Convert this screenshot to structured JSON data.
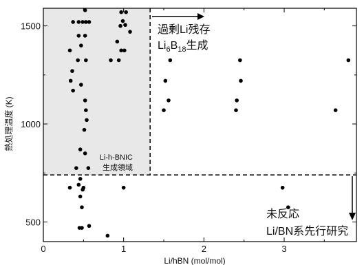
{
  "chart_data": {
    "type": "scatter",
    "xlabel": "Li/hBN (mol/mol)",
    "ylabel": "熱処理温度 (K)",
    "xlim": [
      0,
      3.9
    ],
    "ylim": [
      400,
      1590
    ],
    "x_ticks": [
      "0",
      "1",
      "2",
      "3"
    ],
    "x_tick_values": [
      0,
      1,
      2,
      3
    ],
    "y_ticks": [
      "500",
      "1000",
      "1500"
    ],
    "y_tick_values": [
      500,
      1000,
      1500
    ],
    "grid": false,
    "marker_color": "#000000",
    "shaded_region": {
      "x_range": [
        0,
        1.33
      ],
      "y_range": [
        740,
        1590
      ],
      "color": "#e8e8e8",
      "label_lines": [
        "Li-h-BNIC",
        "生成領域"
      ]
    },
    "reference_lines": [
      {
        "orientation": "vertical",
        "value": 1.33,
        "style": "dashed"
      },
      {
        "orientation": "horizontal",
        "value": 740,
        "style": "dashed"
      }
    ],
    "annotations": [
      {
        "lines": [
          "過剰Li残存"
        ],
        "formula": {
          "parts": [
            "Li",
            "6",
            "B",
            "18",
            "生成"
          ],
          "subscript_index": [
            1,
            3
          ]
        },
        "arrow": "right"
      },
      {
        "lines": [
          "未反応",
          "Li/BN系先行研究"
        ],
        "arrow": "down"
      }
    ],
    "points": [
      {
        "x": 0.52,
        "y": 1580
      },
      {
        "x": 0.37,
        "y": 1520
      },
      {
        "x": 0.44,
        "y": 1520
      },
      {
        "x": 0.49,
        "y": 1520
      },
      {
        "x": 0.53,
        "y": 1520
      },
      {
        "x": 0.57,
        "y": 1520
      },
      {
        "x": 0.97,
        "y": 1570
      },
      {
        "x": 1.03,
        "y": 1570
      },
      {
        "x": 0.99,
        "y": 1525
      },
      {
        "x": 1.02,
        "y": 1505
      },
      {
        "x": 0.96,
        "y": 1500
      },
      {
        "x": 1.08,
        "y": 1470
      },
      {
        "x": 0.44,
        "y": 1450
      },
      {
        "x": 0.52,
        "y": 1450
      },
      {
        "x": 0.33,
        "y": 1375
      },
      {
        "x": 0.47,
        "y": 1400
      },
      {
        "x": 0.92,
        "y": 1420
      },
      {
        "x": 0.97,
        "y": 1375
      },
      {
        "x": 1.01,
        "y": 1375
      },
      {
        "x": 0.43,
        "y": 1325
      },
      {
        "x": 0.53,
        "y": 1325
      },
      {
        "x": 0.84,
        "y": 1325
      },
      {
        "x": 0.94,
        "y": 1325
      },
      {
        "x": 0.36,
        "y": 1270
      },
      {
        "x": 0.34,
        "y": 1220
      },
      {
        "x": 0.47,
        "y": 1200
      },
      {
        "x": 0.37,
        "y": 1170
      },
      {
        "x": 0.52,
        "y": 1120
      },
      {
        "x": 0.53,
        "y": 1070
      },
      {
        "x": 0.54,
        "y": 1020
      },
      {
        "x": 0.51,
        "y": 970
      },
      {
        "x": 0.46,
        "y": 870
      },
      {
        "x": 0.52,
        "y": 850
      },
      {
        "x": 0.41,
        "y": 775
      },
      {
        "x": 0.56,
        "y": 775
      },
      {
        "x": 0.46,
        "y": 720
      },
      {
        "x": 0.44,
        "y": 690
      },
      {
        "x": 0.5,
        "y": 675
      },
      {
        "x": 0.49,
        "y": 665
      },
      {
        "x": 0.33,
        "y": 675
      },
      {
        "x": 0.46,
        "y": 630
      },
      {
        "x": 0.48,
        "y": 575
      },
      {
        "x": 0.45,
        "y": 470
      },
      {
        "x": 0.48,
        "y": 470
      },
      {
        "x": 0.57,
        "y": 480
      },
      {
        "x": 0.8,
        "y": 430
      },
      {
        "x": 1.0,
        "y": 675
      },
      {
        "x": 1.58,
        "y": 1325
      },
      {
        "x": 1.52,
        "y": 1220
      },
      {
        "x": 1.56,
        "y": 1120
      },
      {
        "x": 1.5,
        "y": 1070
      },
      {
        "x": 2.45,
        "y": 1325
      },
      {
        "x": 2.46,
        "y": 1220
      },
      {
        "x": 2.41,
        "y": 1120
      },
      {
        "x": 2.4,
        "y": 1070
      },
      {
        "x": 3.8,
        "y": 1325
      },
      {
        "x": 3.64,
        "y": 1070
      },
      {
        "x": 2.98,
        "y": 675
      },
      {
        "x": 3.05,
        "y": 575
      }
    ]
  }
}
